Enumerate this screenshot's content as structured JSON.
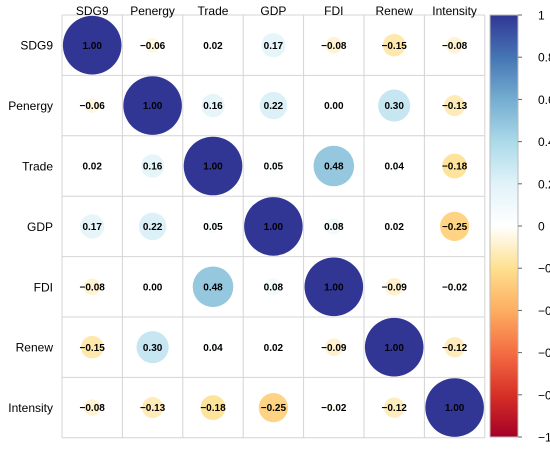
{
  "chart_data": {
    "type": "heatmap",
    "variables": [
      "SDG9",
      "Penergy",
      "Trade",
      "GDP",
      "FDI",
      "Renew",
      "Intensity"
    ],
    "matrix": [
      [
        1.0,
        -0.06,
        0.02,
        0.17,
        -0.08,
        -0.15,
        -0.08
      ],
      [
        -0.06,
        1.0,
        0.16,
        0.22,
        0.0,
        0.3,
        -0.13
      ],
      [
        0.02,
        0.16,
        1.0,
        0.05,
        0.48,
        0.04,
        -0.18
      ],
      [
        0.17,
        0.22,
        0.05,
        1.0,
        0.08,
        0.02,
        -0.25
      ],
      [
        -0.08,
        0.0,
        0.48,
        0.08,
        1.0,
        -0.09,
        -0.02
      ],
      [
        -0.15,
        0.3,
        0.04,
        0.02,
        -0.09,
        1.0,
        -0.12
      ],
      [
        -0.08,
        -0.13,
        -0.18,
        -0.25,
        -0.02,
        -0.12,
        1.0
      ]
    ],
    "color_scale": {
      "min": -1,
      "max": 1,
      "ticks": [
        "1",
        "0.8",
        "0.6",
        "0.4",
        "0.2",
        "0",
        "−0.2",
        "−0.4",
        "−0.6",
        "−0.8",
        "−1"
      ],
      "stops": [
        {
          "value": -1,
          "color": "#a50026"
        },
        {
          "value": -0.8,
          "color": "#d73027"
        },
        {
          "value": -0.6,
          "color": "#f46d43"
        },
        {
          "value": -0.4,
          "color": "#fdae61"
        },
        {
          "value": -0.2,
          "color": "#fee090"
        },
        {
          "value": 0,
          "color": "#ffffff"
        },
        {
          "value": 0.2,
          "color": "#e0f3f8"
        },
        {
          "value": 0.4,
          "color": "#abd9e9"
        },
        {
          "value": 0.6,
          "color": "#74add1"
        },
        {
          "value": 0.8,
          "color": "#4575b4"
        },
        {
          "value": 1,
          "color": "#313695"
        }
      ]
    },
    "grid": true,
    "legend_placement": "right"
  }
}
